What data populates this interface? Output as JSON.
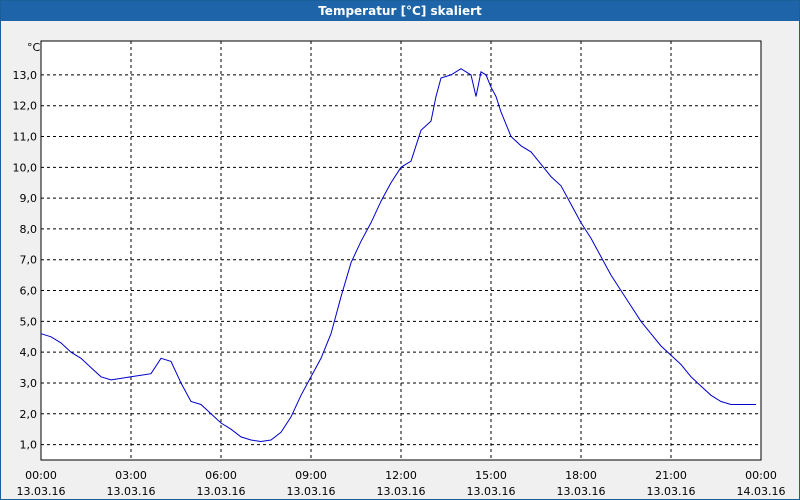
{
  "window": {
    "title": "Temperatur [°C] skaliert"
  },
  "chart_data": {
    "type": "line",
    "title": "Temperatur [°C] skaliert",
    "ylabel": "°C",
    "xlabel": "",
    "grid": true,
    "line_color": "#0000cc",
    "ylim": [
      0.5,
      14.1
    ],
    "y_ticks": [
      "1,0",
      "2,0",
      "3,0",
      "4,0",
      "5,0",
      "6,0",
      "7,0",
      "8,0",
      "9,0",
      "10,0",
      "11,0",
      "12,0",
      "13,0"
    ],
    "y_tick_values": [
      1,
      2,
      3,
      4,
      5,
      6,
      7,
      8,
      9,
      10,
      11,
      12,
      13
    ],
    "xlim_hours": [
      0,
      24
    ],
    "x_ticks": [
      {
        "time": "00:00",
        "date": "13.03.16"
      },
      {
        "time": "03:00",
        "date": "13.03.16"
      },
      {
        "time": "06:00",
        "date": "13.03.16"
      },
      {
        "time": "09:00",
        "date": "13.03.16"
      },
      {
        "time": "12:00",
        "date": "13.03.16"
      },
      {
        "time": "15:00",
        "date": "13.03.16"
      },
      {
        "time": "18:00",
        "date": "13.03.16"
      },
      {
        "time": "21:00",
        "date": "13.03.16"
      },
      {
        "time": "00:00",
        "date": "14.03.16"
      }
    ],
    "series": [
      {
        "x": [
          "00:00",
          "00:20",
          "00:40",
          "01:00",
          "01:20",
          "01:40",
          "02:00",
          "02:20",
          "02:40",
          "03:00",
          "03:20",
          "03:40",
          "04:00",
          "04:20",
          "04:40",
          "05:00",
          "05:20",
          "05:40",
          "06:00",
          "06:20",
          "06:40",
          "07:00",
          "07:20",
          "07:40",
          "08:00",
          "08:20",
          "08:40",
          "09:00",
          "09:20",
          "09:40",
          "10:00",
          "10:20",
          "10:40",
          "11:00",
          "11:20",
          "11:40",
          "12:00",
          "12:10",
          "12:20",
          "12:40",
          "13:00",
          "13:10",
          "13:20",
          "13:40",
          "14:00",
          "14:20",
          "14:30",
          "14:40",
          "14:50",
          "15:00",
          "15:10",
          "15:20",
          "15:30",
          "15:40",
          "16:00",
          "16:20",
          "16:40",
          "17:00",
          "17:20",
          "17:40",
          "18:00",
          "18:20",
          "18:40",
          "19:00",
          "19:20",
          "19:40",
          "20:00",
          "20:20",
          "20:40",
          "21:00",
          "21:20",
          "21:40",
          "22:00",
          "22:20",
          "22:40",
          "23:00",
          "23:20",
          "23:40",
          "23:50"
        ],
        "y": [
          4.6,
          4.5,
          4.3,
          4.0,
          3.8,
          3.5,
          3.2,
          3.1,
          3.15,
          3.2,
          3.25,
          3.3,
          3.8,
          3.7,
          3.0,
          2.4,
          2.3,
          2.0,
          1.7,
          1.5,
          1.25,
          1.15,
          1.1,
          1.15,
          1.4,
          1.9,
          2.6,
          3.2,
          3.8,
          4.6,
          5.8,
          6.9,
          7.6,
          8.2,
          8.9,
          9.5,
          10.0,
          10.1,
          10.2,
          11.2,
          11.5,
          12.3,
          12.9,
          13.0,
          13.2,
          13.0,
          12.3,
          13.1,
          13.0,
          12.6,
          12.3,
          11.8,
          11.4,
          11.0,
          10.7,
          10.5,
          10.1,
          9.7,
          9.4,
          8.8,
          8.2,
          7.7,
          7.1,
          6.5,
          6.0,
          5.5,
          5.0,
          4.6,
          4.2,
          3.9,
          3.6,
          3.2,
          2.9,
          2.6,
          2.4,
          2.3,
          2.3,
          2.3,
          2.3
        ]
      }
    ]
  }
}
